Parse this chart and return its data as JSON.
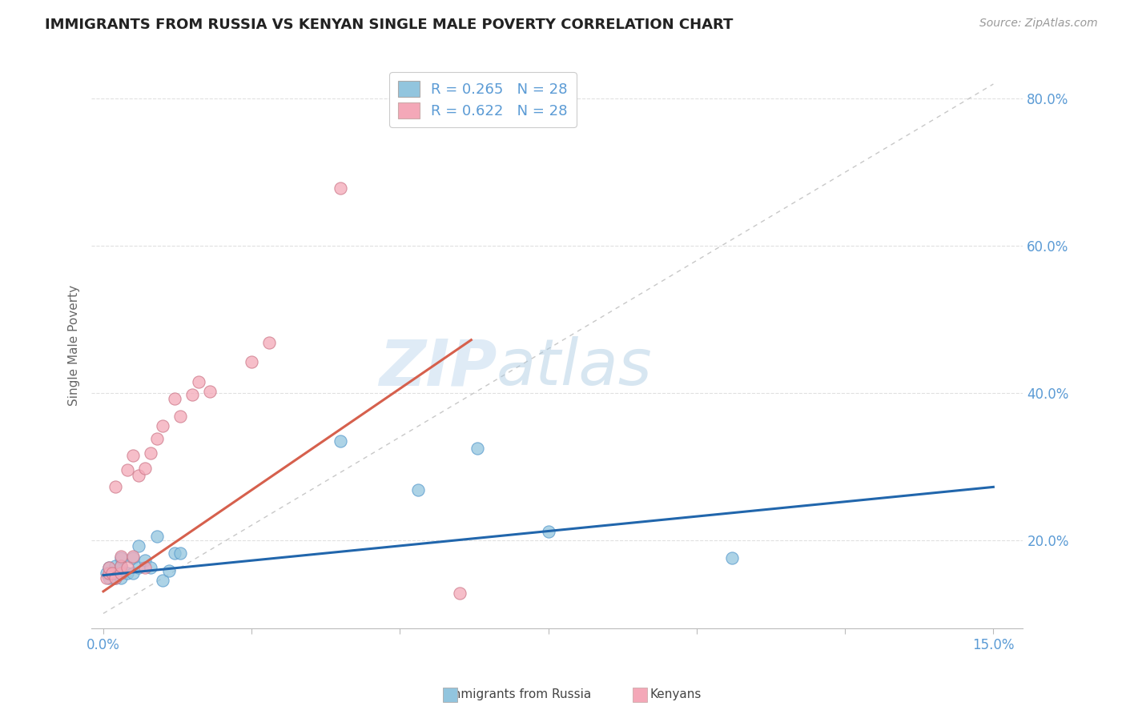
{
  "title": "IMMIGRANTS FROM RUSSIA VS KENYAN SINGLE MALE POVERTY CORRELATION CHART",
  "source": "Source: ZipAtlas.com",
  "ylabel": "Single Male Poverty",
  "xlim": [
    -0.002,
    0.155
  ],
  "ylim": [
    0.08,
    0.85
  ],
  "xtick_positions": [
    0.0,
    0.025,
    0.05,
    0.075,
    0.1,
    0.125,
    0.15
  ],
  "yticks_right": [
    0.2,
    0.4,
    0.6,
    0.8
  ],
  "ytick_right_labels": [
    "20.0%",
    "40.0%",
    "60.0%",
    "80.0%"
  ],
  "legend_r1": "R = 0.265",
  "legend_n1": "N = 28",
  "legend_r2": "R = 0.622",
  "legend_n2": "N = 28",
  "blue_color": "#92c5de",
  "pink_color": "#f4a8b8",
  "trend_blue": "#2166ac",
  "trend_pink": "#d6604d",
  "ref_line_color": "#c8c8c8",
  "blue_scatter_x": [
    0.0005,
    0.001,
    0.001,
    0.0015,
    0.002,
    0.002,
    0.002,
    0.003,
    0.003,
    0.003,
    0.003,
    0.004,
    0.005,
    0.005,
    0.006,
    0.006,
    0.007,
    0.008,
    0.009,
    0.01,
    0.011,
    0.012,
    0.013,
    0.04,
    0.053,
    0.063,
    0.075,
    0.106
  ],
  "blue_scatter_y": [
    0.155,
    0.148,
    0.162,
    0.155,
    0.148,
    0.155,
    0.165,
    0.148,
    0.158,
    0.165,
    0.175,
    0.155,
    0.155,
    0.175,
    0.162,
    0.192,
    0.172,
    0.162,
    0.205,
    0.145,
    0.158,
    0.182,
    0.182,
    0.335,
    0.268,
    0.325,
    0.212,
    0.175
  ],
  "pink_scatter_x": [
    0.0005,
    0.001,
    0.001,
    0.0015,
    0.002,
    0.002,
    0.003,
    0.003,
    0.003,
    0.004,
    0.004,
    0.005,
    0.005,
    0.006,
    0.007,
    0.007,
    0.008,
    0.009,
    0.01,
    0.012,
    0.013,
    0.015,
    0.016,
    0.018,
    0.025,
    0.028,
    0.04,
    0.06
  ],
  "pink_scatter_y": [
    0.148,
    0.155,
    0.162,
    0.155,
    0.148,
    0.272,
    0.155,
    0.165,
    0.178,
    0.162,
    0.295,
    0.178,
    0.315,
    0.288,
    0.162,
    0.298,
    0.318,
    0.338,
    0.355,
    0.392,
    0.368,
    0.398,
    0.415,
    0.402,
    0.442,
    0.468,
    0.678,
    0.128
  ],
  "trend_blue_x0": 0.0,
  "trend_blue_y0": 0.152,
  "trend_blue_x1": 0.15,
  "trend_blue_y1": 0.272,
  "trend_pink_x0": 0.0,
  "trend_pink_y0": 0.13,
  "trend_pink_x1": 0.062,
  "trend_pink_y1": 0.472,
  "watermark_zip": "ZIP",
  "watermark_atlas": "atlas",
  "background_color": "#ffffff",
  "grid_color": "#e0e0e0"
}
